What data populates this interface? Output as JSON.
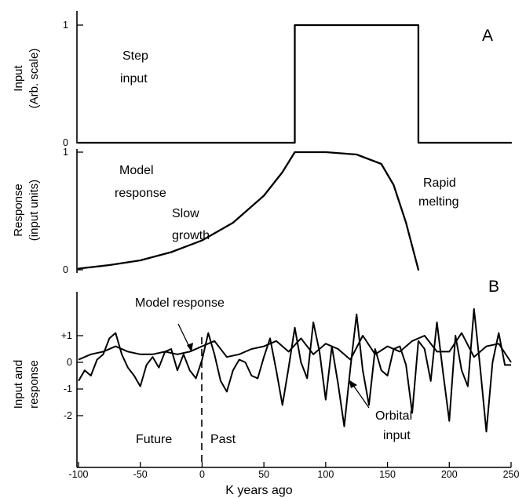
{
  "chart_data": [
    {
      "panel": "A",
      "type": "line",
      "title": "",
      "xlabel": "",
      "ylabel_line1": "Input",
      "ylabel_line2": "(Arb. scale)",
      "yticks": [
        "0",
        "1"
      ],
      "ylim": [
        0,
        1
      ],
      "xlim": [
        -100,
        250
      ],
      "series": [
        {
          "x": [
            -100,
            75,
            75,
            175,
            175,
            250
          ],
          "y": [
            0,
            0,
            1,
            1,
            0,
            0
          ]
        }
      ],
      "annotations": [
        "Step",
        "input"
      ]
    },
    {
      "panel": "A",
      "type": "line",
      "ylabel_line1": "Response",
      "ylabel_line2": "(input units)",
      "yticks": [
        "0",
        "1"
      ],
      "ylim": [
        0,
        1
      ],
      "xlim": [
        -100,
        175
      ],
      "series": [
        {
          "x": [
            -100,
            -75,
            -50,
            -25,
            0,
            25,
            50,
            65,
            75,
            100,
            125,
            145,
            155,
            165,
            175
          ],
          "y": [
            0.01,
            0.04,
            0.08,
            0.15,
            0.25,
            0.4,
            0.63,
            0.83,
            1.0,
            1.0,
            0.98,
            0.9,
            0.72,
            0.4,
            0.0
          ]
        }
      ],
      "annotations": [
        "Model",
        "response",
        "Slow",
        "growth",
        "Rapid",
        "melting"
      ],
      "panel_label": "A"
    },
    {
      "panel": "B",
      "type": "line",
      "panel_label": "B",
      "xlabel": "K years ago",
      "ylabel_line1": "Input and",
      "ylabel_line2": "response",
      "xticks": [
        "-100",
        "-50",
        "0",
        "50",
        "100",
        "150",
        "200",
        "250"
      ],
      "yticks": [
        "+1",
        "0",
        "-1",
        "-2"
      ],
      "xlim": [
        -100,
        250
      ],
      "ylim": [
        -2.6,
        1.9
      ],
      "series": [
        {
          "label_on_chart": "Orbital input",
          "x": [
            -100,
            -95,
            -90,
            -85,
            -80,
            -75,
            -70,
            -65,
            -60,
            -55,
            -50,
            -45,
            -40,
            -35,
            -30,
            -25,
            -20,
            -15,
            -10,
            -5,
            0,
            5,
            10,
            15,
            20,
            25,
            30,
            35,
            40,
            45,
            50,
            55,
            60,
            65,
            70,
            75,
            80,
            85,
            90,
            95,
            100,
            105,
            110,
            115,
            120,
            125,
            130,
            135,
            140,
            145,
            150,
            155,
            160,
            165,
            170,
            175,
            180,
            185,
            190,
            195,
            200,
            205,
            210,
            215,
            220,
            225,
            230,
            235,
            240,
            245,
            250
          ],
          "y": [
            -0.7,
            -0.3,
            -0.5,
            0.1,
            0.3,
            0.9,
            1.1,
            0.3,
            -0.2,
            -0.5,
            -0.9,
            -0.1,
            0.2,
            -0.2,
            0.4,
            0.5,
            -0.3,
            0.3,
            -0.3,
            -0.6,
            0.1,
            1.1,
            0.3,
            -0.7,
            -1.1,
            -0.3,
            0.1,
            0.0,
            -0.5,
            -0.6,
            0.2,
            0.9,
            -0.3,
            -1.6,
            -0.2,
            1.3,
            0.0,
            -0.6,
            1.5,
            0.4,
            -1.4,
            0.6,
            -0.8,
            -2.4,
            -0.2,
            1.8,
            -0.3,
            -1.6,
            0.5,
            -0.3,
            -0.5,
            0.5,
            0.6,
            -0.1,
            -1.9,
            0.8,
            0.5,
            -0.7,
            1.5,
            -0.4,
            -2.2,
            1.0,
            -0.3,
            -0.9,
            2.0,
            -0.2,
            -2.6,
            0.0,
            1.1,
            -0.1,
            -0.1
          ]
        },
        {
          "label_on_chart": "Model response",
          "x": [
            -100,
            -90,
            -80,
            -70,
            -60,
            -50,
            -40,
            -30,
            -20,
            -10,
            0,
            10,
            20,
            30,
            40,
            50,
            60,
            70,
            80,
            90,
            100,
            110,
            120,
            130,
            140,
            150,
            160,
            170,
            180,
            190,
            200,
            210,
            220,
            230,
            240,
            250
          ],
          "y": [
            0.1,
            0.3,
            0.4,
            0.6,
            0.4,
            0.3,
            0.3,
            0.4,
            0.3,
            0.4,
            0.6,
            0.8,
            0.2,
            0.3,
            0.5,
            0.6,
            0.8,
            0.4,
            0.9,
            0.3,
            0.7,
            0.5,
            0.1,
            1.0,
            0.3,
            0.6,
            0.4,
            0.8,
            1.0,
            0.4,
            0.4,
            1.1,
            0.2,
            0.6,
            0.7,
            0.0
          ]
        }
      ],
      "annotations": [
        "Future",
        "Past",
        "Model response",
        "Orbital",
        "input"
      ]
    }
  ]
}
